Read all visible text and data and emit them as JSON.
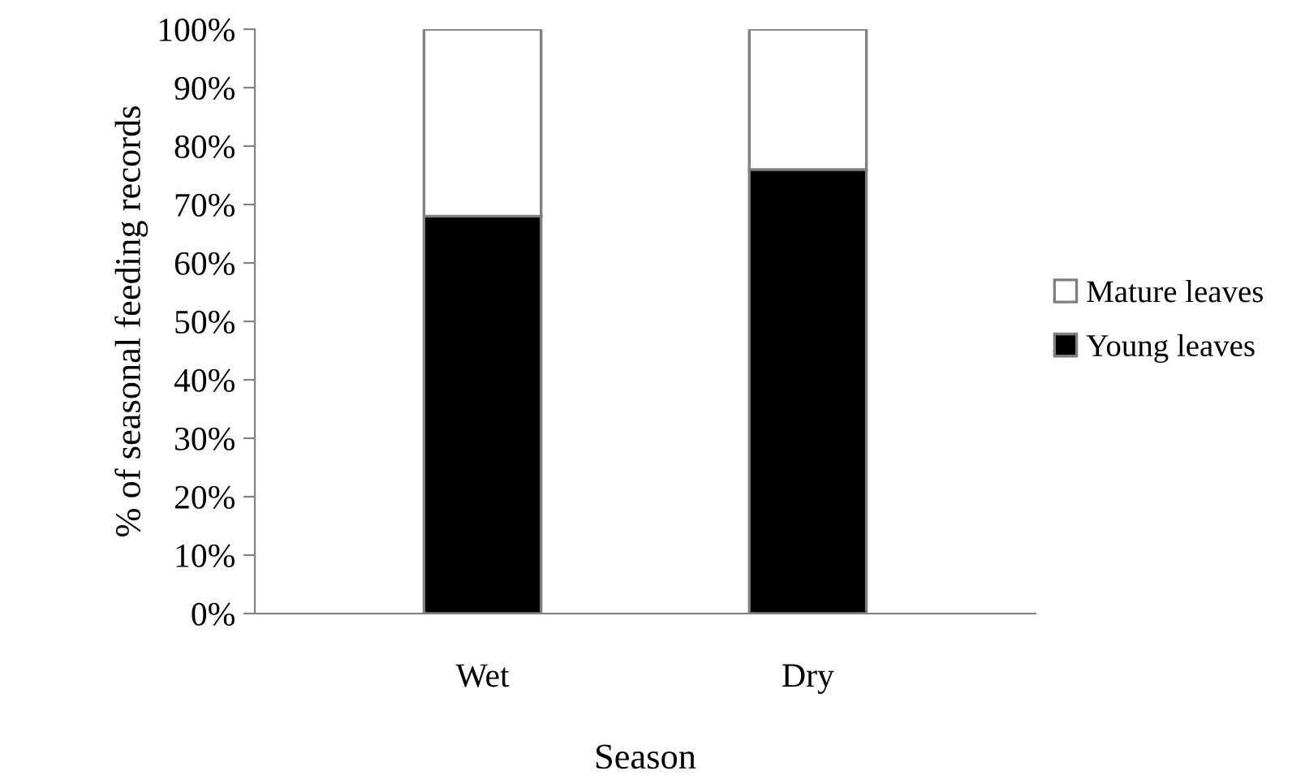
{
  "chart_data": {
    "type": "bar",
    "stacked": true,
    "xlabel": "Season",
    "ylabel": "% of seasonal feeding records",
    "categories": [
      "Wet",
      "Dry"
    ],
    "series": [
      {
        "name": "Young leaves",
        "color": "#000000",
        "values": [
          68,
          76
        ]
      },
      {
        "name": "Mature leaves",
        "color": "#ffffff",
        "values": [
          32,
          24
        ]
      }
    ],
    "ylim": [
      0,
      100
    ],
    "yticks": [
      {
        "value": 0,
        "label": "0%"
      },
      {
        "value": 10,
        "label": "10%"
      },
      {
        "value": 20,
        "label": "20%"
      },
      {
        "value": 30,
        "label": "30%"
      },
      {
        "value": 40,
        "label": "40%"
      },
      {
        "value": 50,
        "label": "50%"
      },
      {
        "value": 60,
        "label": "60%"
      },
      {
        "value": 70,
        "label": "70%"
      },
      {
        "value": 80,
        "label": "80%"
      },
      {
        "value": 90,
        "label": "90%"
      },
      {
        "value": 100,
        "label": "100%"
      }
    ],
    "grid": false,
    "legend": "right"
  }
}
